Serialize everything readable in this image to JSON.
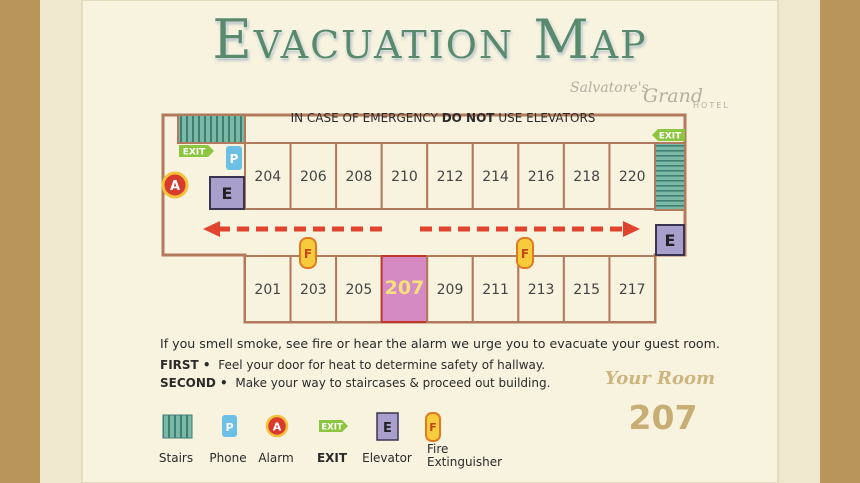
{
  "header": {
    "title": "Evacuation Map",
    "brand_script": "Salvatore's",
    "brand_name": "Grand",
    "brand_sub": "HOTEL"
  },
  "notice": {
    "prefix": "IN CASE OF EMERGENCY",
    "emphasis": "DO NOT",
    "suffix": "USE ELEVATORS"
  },
  "map": {
    "exit": "EXIT",
    "phone": "P",
    "alarm": "A",
    "elevator": "E",
    "extinguisher": "F"
  },
  "rooms": {
    "top": [
      "204",
      "206",
      "208",
      "210",
      "212",
      "214",
      "216",
      "218",
      "220"
    ],
    "bottom": [
      "201",
      "203",
      "205",
      "207",
      "209",
      "211",
      "213",
      "215",
      "217"
    ]
  },
  "instructions": {
    "intro": "If you smell smoke, see fire or hear the alarm we urge you to evacuate your guest room.",
    "steps": [
      {
        "label": "FIRST •",
        "text": "Feel your door for heat to determine safety of hallway."
      },
      {
        "label": "SECOND •",
        "text": "Make your way to staircases & proceed out building."
      }
    ]
  },
  "your_room": {
    "label": "Your Room",
    "number": "207"
  },
  "legend": [
    {
      "label": "Stairs"
    },
    {
      "symbol": "P",
      "label": "Phone"
    },
    {
      "symbol": "A",
      "label": "Alarm"
    },
    {
      "symbol": "EXIT",
      "label": "EXIT"
    },
    {
      "symbol": "E",
      "label": "Elevator"
    },
    {
      "symbol": "F",
      "label": "Fire Extinguisher"
    }
  ]
}
